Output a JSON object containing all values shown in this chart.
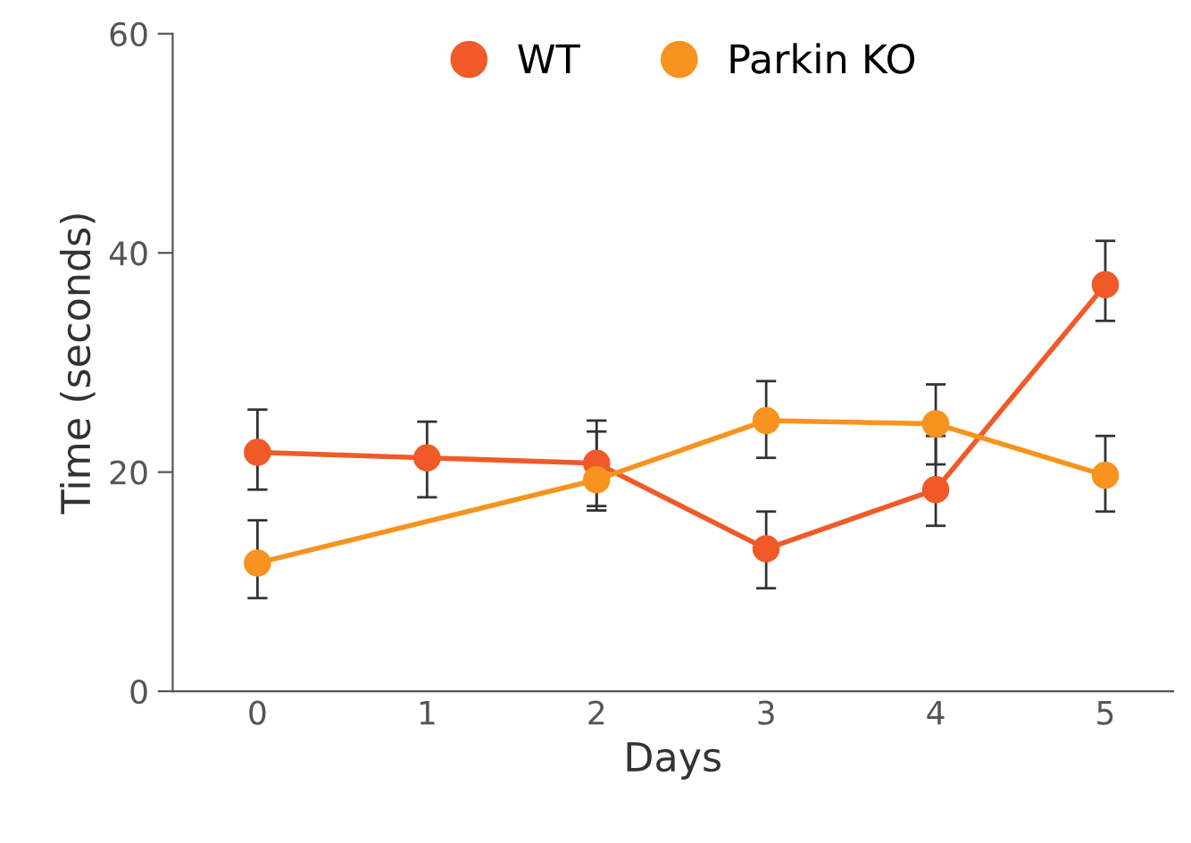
{
  "chart_data": {
    "type": "line",
    "xlabel": "Days",
    "ylabel": "Time (seconds)",
    "xlim": [
      -0.5,
      5.4
    ],
    "xticks": [
      0,
      1,
      2,
      3,
      4,
      5
    ],
    "ylim": [
      0,
      60
    ],
    "yticks": [
      0,
      20,
      40,
      60
    ],
    "grid": false,
    "legend": "top",
    "marker": "circle",
    "line_style": "solid",
    "series": [
      {
        "name": "WT",
        "color": "#f05a28",
        "x": [
          0,
          1,
          2,
          3,
          4,
          5
        ],
        "values": [
          21.8,
          21.3,
          20.8,
          13.0,
          18.4,
          37.1
        ],
        "errors": [
          [
            18.4,
            25.7
          ],
          [
            17.7,
            24.6
          ],
          [
            16.9,
            24.7
          ],
          [
            9.4,
            16.4
          ],
          [
            15.1,
            23.3
          ],
          [
            33.8,
            41.1
          ]
        ]
      },
      {
        "name": "Parkin KO",
        "color": "#f7931e",
        "x": [
          0,
          2,
          3,
          4,
          5
        ],
        "values": [
          11.7,
          19.3,
          24.7,
          24.4,
          19.7
        ],
        "errors": [
          [
            8.5,
            15.6
          ],
          [
            16.5,
            23.7
          ],
          [
            21.3,
            28.3
          ],
          [
            20.7,
            28.0
          ],
          [
            16.4,
            23.3
          ]
        ]
      }
    ]
  }
}
